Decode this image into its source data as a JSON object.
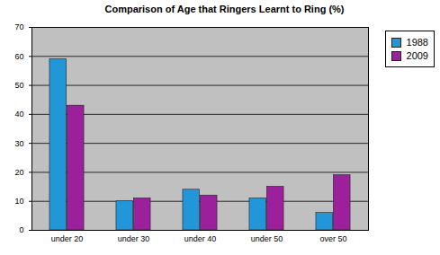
{
  "chart_data": {
    "type": "bar",
    "title": "Comparison of Age that Ringers Learnt to Ring (%)",
    "categories": [
      "under 20",
      "under 30",
      "under 40",
      "under 50",
      "over 50"
    ],
    "series": [
      {
        "name": "1988",
        "color": "#2196d8",
        "values": [
          59,
          10,
          14,
          11,
          6
        ]
      },
      {
        "name": "2009",
        "color": "#9c1f9c",
        "values": [
          43,
          11,
          12,
          15,
          19
        ]
      }
    ],
    "ylim": [
      0,
      70
    ],
    "yticks": [
      0,
      10,
      20,
      30,
      40,
      50,
      60,
      70
    ],
    "grid": true,
    "legend": "top-right"
  }
}
